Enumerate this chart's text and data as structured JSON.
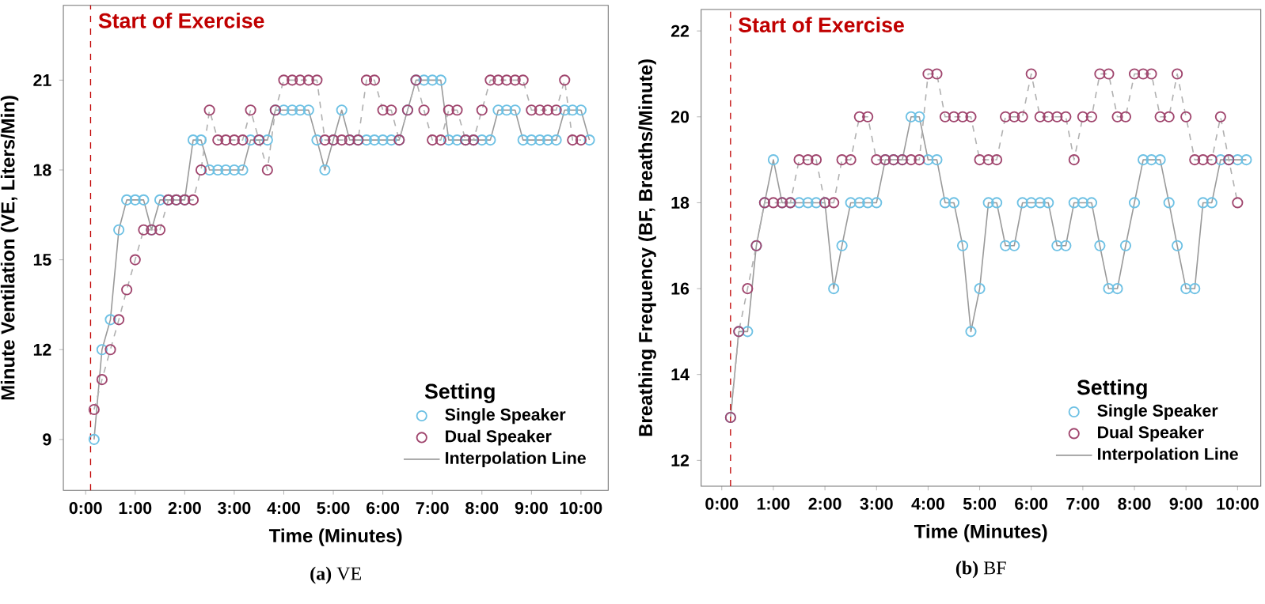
{
  "chart_data": [
    {
      "type": "scatter",
      "xlabel": "Time (Minutes)",
      "ylabel": "Minute Ventilation (VE, Liters/Min)",
      "legend_title": "Setting",
      "legend": "bottom right",
      "annotations": [
        "**(a)** VE"
      ],
      "xlim": [
        -0.45,
        10.55
      ],
      "ylim": [
        7.3,
        23.5
      ],
      "xticks": [
        {
          "value": 0,
          "label": "0:00"
        },
        {
          "value": 1,
          "label": "1:00"
        },
        {
          "value": 2,
          "label": "2:00"
        },
        {
          "value": 3,
          "label": "3:00"
        },
        {
          "value": 4,
          "label": "4:00"
        },
        {
          "value": 5,
          "label": "5:00"
        },
        {
          "value": 6,
          "label": "6:00"
        },
        {
          "value": 7,
          "label": "7:00"
        },
        {
          "value": 8,
          "label": "8:00"
        },
        {
          "value": 9,
          "label": "9:00"
        },
        {
          "value": 10,
          "label": "10:00"
        }
      ],
      "yticks": [
        9,
        12,
        15,
        18,
        21
      ],
      "ref_lines": [
        {
          "axis": "x",
          "value": 0.1,
          "label": "Start of Exercise",
          "color": "#c00000",
          "line_style": "dashed"
        }
      ],
      "series": [
        {
          "name": "Single Speaker",
          "marker": "circle",
          "color": "#6ec1e4",
          "x": [
            0.17,
            0.33,
            0.5,
            0.67,
            0.83,
            1,
            1.17,
            1.33,
            1.5,
            1.67,
            1.83,
            2,
            2.17,
            2.33,
            2.5,
            2.67,
            2.83,
            3,
            3.17,
            3.33,
            3.5,
            3.67,
            3.83,
            4,
            4.17,
            4.33,
            4.5,
            4.67,
            4.83,
            5,
            5.17,
            5.33,
            5.5,
            5.67,
            5.83,
            6,
            6.17,
            6.33,
            6.5,
            6.67,
            6.83,
            7,
            7.17,
            7.33,
            7.5,
            7.67,
            7.83,
            8,
            8.17,
            8.33,
            8.5,
            8.67,
            8.83,
            9,
            9.17,
            9.33,
            9.5,
            9.67,
            9.83,
            10,
            10.17
          ],
          "values": [
            9,
            12,
            13,
            16,
            17,
            17,
            17,
            16,
            17,
            17,
            17,
            17,
            19,
            19,
            18,
            18,
            18,
            18,
            18,
            19,
            19,
            19,
            20,
            20,
            20,
            20,
            20,
            19,
            18,
            19,
            20,
            19,
            19,
            19,
            19,
            19,
            19,
            19,
            20,
            21,
            21,
            21,
            21,
            19,
            19,
            19,
            19,
            19,
            19,
            20,
            20,
            20,
            19,
            19,
            19,
            19,
            19,
            20,
            20,
            20,
            19
          ]
        },
        {
          "name": "Dual Speaker",
          "marker": "circle",
          "color": "#a0466e",
          "x": [
            0.17,
            0.33,
            0.5,
            0.67,
            0.83,
            1,
            1.17,
            1.33,
            1.5,
            1.67,
            1.83,
            2,
            2.17,
            2.33,
            2.5,
            2.67,
            2.83,
            3,
            3.17,
            3.33,
            3.5,
            3.67,
            3.83,
            4,
            4.17,
            4.33,
            4.5,
            4.67,
            4.83,
            5,
            5.17,
            5.33,
            5.5,
            5.67,
            5.83,
            6,
            6.17,
            6.33,
            6.5,
            6.67,
            6.83,
            7,
            7.17,
            7.33,
            7.5,
            7.67,
            7.83,
            8,
            8.17,
            8.33,
            8.5,
            8.67,
            8.83,
            9,
            9.17,
            9.33,
            9.5,
            9.67,
            9.83,
            10
          ],
          "values": [
            10,
            11,
            12,
            13,
            14,
            15,
            16,
            16,
            16,
            17,
            17,
            17,
            17,
            18,
            20,
            19,
            19,
            19,
            19,
            20,
            19,
            18,
            20,
            21,
            21,
            21,
            21,
            21,
            19,
            19,
            19,
            19,
            19,
            21,
            21,
            20,
            20,
            19,
            20,
            21,
            20,
            19,
            19,
            20,
            20,
            19,
            19,
            20,
            21,
            21,
            21,
            21,
            21,
            20,
            20,
            20,
            20,
            21,
            19,
            19
          ]
        },
        {
          "name": "Interpolation Line",
          "type": "line",
          "color": "#9a9a9a",
          "line_style": "solid",
          "x": [
            0.17,
            0.33,
            0.5,
            0.67,
            0.83,
            1,
            1.17,
            1.33,
            1.5,
            1.67,
            1.83,
            2,
            2.17,
            2.33,
            2.5,
            2.67,
            2.83,
            3,
            3.17,
            3.33,
            3.5,
            3.67,
            3.83,
            4,
            4.17,
            4.33,
            4.5,
            4.67,
            4.83,
            5,
            5.17,
            5.33,
            5.5,
            5.67,
            5.83,
            6,
            6.17,
            6.33,
            6.5,
            6.67,
            6.83,
            7,
            7.17,
            7.33,
            7.5,
            7.67,
            7.83,
            8,
            8.17,
            8.33,
            8.5,
            8.67,
            8.83,
            9,
            9.17,
            9.33,
            9.5,
            9.67,
            9.83,
            10,
            10.17
          ],
          "values": [
            9,
            12,
            13,
            16,
            17,
            17,
            17,
            16,
            17,
            17,
            17,
            17,
            19,
            19,
            18,
            18,
            18,
            18,
            18,
            19,
            19,
            19,
            20,
            20,
            20,
            20,
            20,
            19,
            18,
            19,
            20,
            19,
            19,
            19,
            19,
            19,
            19,
            19,
            20,
            21,
            21,
            21,
            21,
            19,
            19,
            19,
            19,
            19,
            19,
            20,
            20,
            20,
            19,
            19,
            19,
            19,
            19,
            20,
            20,
            20,
            19
          ]
        },
        {
          "type": "line",
          "color": "#b0b0b0",
          "line_style": "dashed",
          "x": [
            0.17,
            0.33,
            0.5,
            0.67,
            0.83,
            1,
            1.17,
            1.33,
            1.5,
            1.67,
            1.83,
            2,
            2.17,
            2.33,
            2.5,
            2.67,
            2.83,
            3,
            3.17,
            3.33,
            3.5,
            3.67,
            3.83,
            4,
            4.17,
            4.33,
            4.5,
            4.67,
            4.83,
            5,
            5.17,
            5.33,
            5.5,
            5.67,
            5.83,
            6,
            6.17,
            6.33,
            6.5,
            6.67,
            6.83,
            7,
            7.17,
            7.33,
            7.5,
            7.67,
            7.83,
            8,
            8.17,
            8.33,
            8.5,
            8.67,
            8.83,
            9,
            9.17,
            9.33,
            9.5,
            9.67,
            9.83,
            10
          ],
          "values": [
            10,
            11,
            12,
            13,
            14,
            15,
            16,
            16,
            16,
            17,
            17,
            17,
            17,
            18,
            20,
            19,
            19,
            19,
            19,
            20,
            19,
            18,
            20,
            21,
            21,
            21,
            21,
            21,
            19,
            19,
            19,
            19,
            19,
            21,
            21,
            20,
            20,
            19,
            20,
            21,
            20,
            19,
            19,
            20,
            20,
            19,
            19,
            20,
            21,
            21,
            21,
            21,
            21,
            20,
            20,
            20,
            20,
            21,
            19,
            19
          ]
        }
      ]
    },
    {
      "type": "scatter",
      "xlabel": "Time (Minutes)",
      "ylabel": "Breathing Frequency (BF, Breaths/Minute)",
      "legend_title": "Setting",
      "legend": "bottom right",
      "annotations": [
        "**(b)** BF"
      ],
      "xlim": [
        -0.4,
        10.45
      ],
      "ylim": [
        11.4,
        22.5
      ],
      "xticks": [
        {
          "value": 0,
          "label": "0:00"
        },
        {
          "value": 1,
          "label": "1:00"
        },
        {
          "value": 2,
          "label": "2:00"
        },
        {
          "value": 3,
          "label": "3:00"
        },
        {
          "value": 4,
          "label": "4:00"
        },
        {
          "value": 5,
          "label": "5:00"
        },
        {
          "value": 6,
          "label": "6:00"
        },
        {
          "value": 7,
          "label": "7:00"
        },
        {
          "value": 8,
          "label": "8:00"
        },
        {
          "value": 9,
          "label": "9:00"
        },
        {
          "value": 10,
          "label": "10:00"
        }
      ],
      "yticks": [
        12,
        14,
        16,
        18,
        20,
        22
      ],
      "ref_lines": [
        {
          "axis": "x",
          "value": 0.17,
          "label": "Start of Exercise",
          "color": "#c00000",
          "line_style": "dashed"
        }
      ],
      "series": [
        {
          "name": "Single Speaker",
          "marker": "circle",
          "color": "#6ec1e4",
          "x": [
            0.17,
            0.33,
            0.5,
            0.67,
            0.83,
            1,
            1.17,
            1.33,
            1.5,
            1.67,
            1.83,
            2,
            2.17,
            2.33,
            2.5,
            2.67,
            2.83,
            3,
            3.17,
            3.33,
            3.5,
            3.67,
            3.83,
            4,
            4.17,
            4.33,
            4.5,
            4.67,
            4.83,
            5,
            5.17,
            5.33,
            5.5,
            5.67,
            5.83,
            6,
            6.17,
            6.33,
            6.5,
            6.67,
            6.83,
            7,
            7.17,
            7.33,
            7.5,
            7.67,
            7.83,
            8,
            8.17,
            8.33,
            8.5,
            8.67,
            8.83,
            9,
            9.17,
            9.33,
            9.5,
            9.67,
            9.83,
            10,
            10.17
          ],
          "values": [
            13,
            15,
            15,
            17,
            18,
            19,
            18,
            18,
            18,
            18,
            18,
            18,
            16,
            17,
            18,
            18,
            18,
            18,
            19,
            19,
            19,
            20,
            20,
            19,
            19,
            18,
            18,
            17,
            15,
            16,
            18,
            18,
            17,
            17,
            18,
            18,
            18,
            18,
            17,
            17,
            18,
            18,
            18,
            17,
            16,
            16,
            17,
            18,
            19,
            19,
            19,
            18,
            17,
            16,
            16,
            18,
            18,
            19,
            19,
            19,
            19
          ]
        },
        {
          "name": "Dual Speaker",
          "marker": "circle",
          "color": "#a0466e",
          "x": [
            0.17,
            0.33,
            0.5,
            0.67,
            0.83,
            1,
            1.17,
            1.33,
            1.5,
            1.67,
            1.83,
            2,
            2.17,
            2.33,
            2.5,
            2.67,
            2.83,
            3,
            3.17,
            3.33,
            3.5,
            3.67,
            3.83,
            4,
            4.17,
            4.33,
            4.5,
            4.67,
            4.83,
            5,
            5.17,
            5.33,
            5.5,
            5.67,
            5.83,
            6,
            6.17,
            6.33,
            6.5,
            6.67,
            6.83,
            7,
            7.17,
            7.33,
            7.5,
            7.67,
            7.83,
            8,
            8.17,
            8.33,
            8.5,
            8.67,
            8.83,
            9,
            9.17,
            9.33,
            9.5,
            9.67,
            9.83,
            10
          ],
          "values": [
            13,
            15,
            16,
            17,
            18,
            18,
            18,
            18,
            19,
            19,
            19,
            18,
            18,
            19,
            19,
            20,
            20,
            19,
            19,
            19,
            19,
            19,
            19,
            21,
            21,
            20,
            20,
            20,
            20,
            19,
            19,
            19,
            20,
            20,
            20,
            21,
            20,
            20,
            20,
            20,
            19,
            20,
            20,
            21,
            21,
            20,
            20,
            21,
            21,
            21,
            20,
            20,
            21,
            20,
            19,
            19,
            19,
            20,
            19,
            18
          ]
        },
        {
          "name": "Interpolation Line",
          "type": "line",
          "color": "#9a9a9a",
          "line_style": "solid",
          "x": [
            0.17,
            0.33,
            0.5,
            0.67,
            0.83,
            1,
            1.17,
            1.33,
            1.5,
            1.67,
            1.83,
            2,
            2.17,
            2.33,
            2.5,
            2.67,
            2.83,
            3,
            3.17,
            3.33,
            3.5,
            3.67,
            3.83,
            4,
            4.17,
            4.33,
            4.5,
            4.67,
            4.83,
            5,
            5.17,
            5.33,
            5.5,
            5.67,
            5.83,
            6,
            6.17,
            6.33,
            6.5,
            6.67,
            6.83,
            7,
            7.17,
            7.33,
            7.5,
            7.67,
            7.83,
            8,
            8.17,
            8.33,
            8.5,
            8.67,
            8.83,
            9,
            9.17,
            9.33,
            9.5,
            9.67,
            9.83,
            10,
            10.17
          ],
          "values": [
            13,
            15,
            15,
            17,
            18,
            19,
            18,
            18,
            18,
            18,
            18,
            18,
            16,
            17,
            18,
            18,
            18,
            18,
            19,
            19,
            19,
            20,
            20,
            19,
            19,
            18,
            18,
            17,
            15,
            16,
            18,
            18,
            17,
            17,
            18,
            18,
            18,
            18,
            17,
            17,
            18,
            18,
            18,
            17,
            16,
            16,
            17,
            18,
            19,
            19,
            19,
            18,
            17,
            16,
            16,
            18,
            18,
            19,
            19,
            19,
            19
          ]
        },
        {
          "type": "line",
          "color": "#b0b0b0",
          "line_style": "dashed",
          "x": [
            0.17,
            0.33,
            0.5,
            0.67,
            0.83,
            1,
            1.17,
            1.33,
            1.5,
            1.67,
            1.83,
            2,
            2.17,
            2.33,
            2.5,
            2.67,
            2.83,
            3,
            3.17,
            3.33,
            3.5,
            3.67,
            3.83,
            4,
            4.17,
            4.33,
            4.5,
            4.67,
            4.83,
            5,
            5.17,
            5.33,
            5.5,
            5.67,
            5.83,
            6,
            6.17,
            6.33,
            6.5,
            6.67,
            6.83,
            7,
            7.17,
            7.33,
            7.5,
            7.67,
            7.83,
            8,
            8.17,
            8.33,
            8.5,
            8.67,
            8.83,
            9,
            9.17,
            9.33,
            9.5,
            9.67,
            9.83,
            10
          ],
          "values": [
            13,
            15,
            16,
            17,
            18,
            18,
            18,
            18,
            19,
            19,
            19,
            18,
            18,
            19,
            19,
            20,
            20,
            19,
            19,
            19,
            19,
            19,
            19,
            21,
            21,
            20,
            20,
            20,
            20,
            19,
            19,
            19,
            20,
            20,
            20,
            21,
            20,
            20,
            20,
            20,
            19,
            20,
            20,
            21,
            21,
            20,
            20,
            21,
            21,
            21,
            20,
            20,
            21,
            20,
            19,
            19,
            19,
            20,
            19,
            18
          ]
        }
      ]
    }
  ]
}
